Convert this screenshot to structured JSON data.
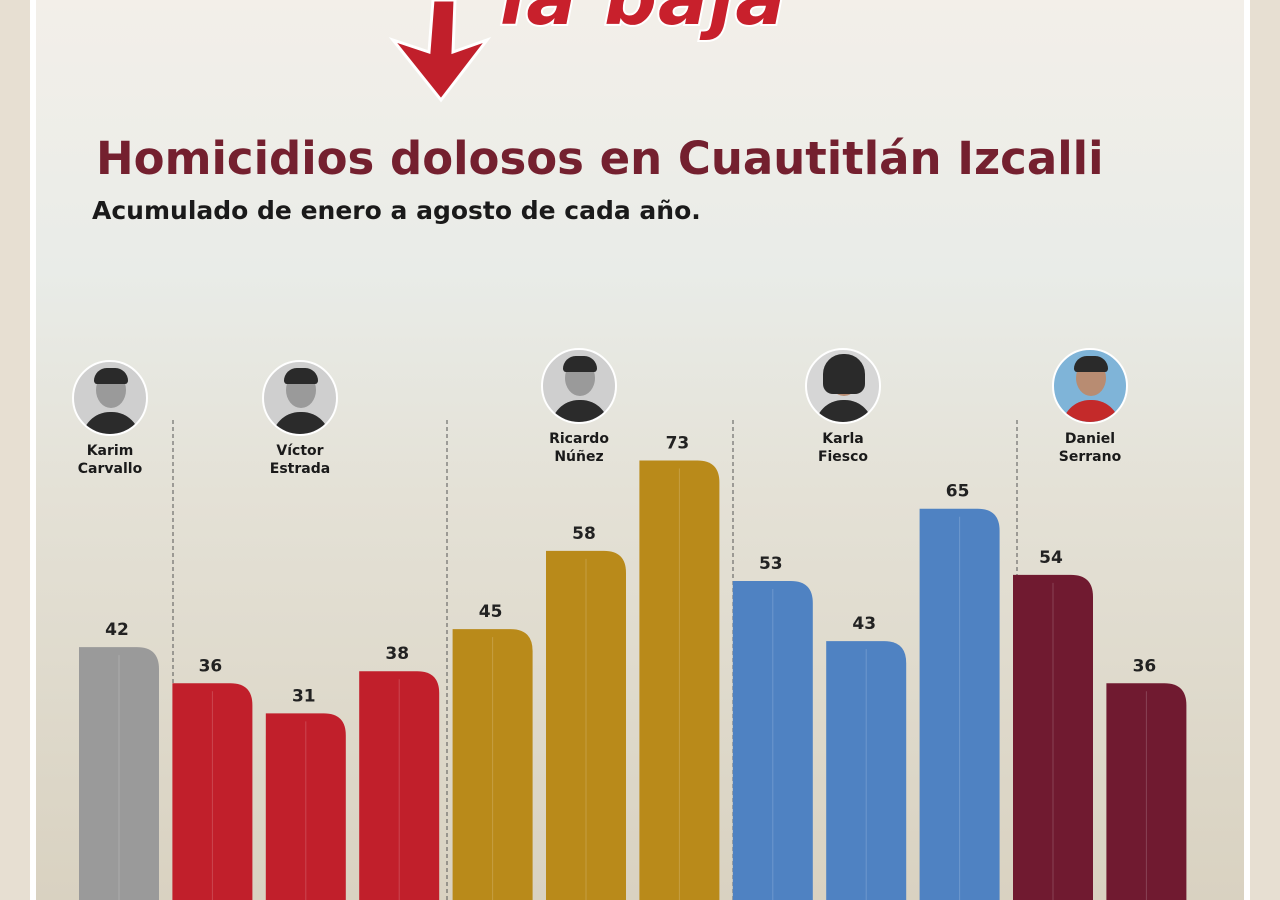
{
  "headline_partial": "la baja",
  "title": "Homicidios dolosos en Cuautitlán Izcalli",
  "subtitle": "Acumulado de enero a agosto de cada año.",
  "colors": {
    "gray": "#9a9a9a",
    "red": "#c11f2b",
    "gold": "#b98a1a",
    "blue": "#4f82c2",
    "maroon": "#701a30",
    "title": "#74202f"
  },
  "people": [
    {
      "first": "Karim",
      "last": "Carvallo",
      "icon": "karim-carvallo-avatar"
    },
    {
      "first": "Víctor",
      "last": "Estrada",
      "icon": "victor-estrada-avatar"
    },
    {
      "first": "Ricardo",
      "last": "Núñez",
      "icon": "ricardo-nunez-avatar"
    },
    {
      "first": "Karla",
      "last": "Fiesco",
      "icon": "karla-fiesco-avatar"
    },
    {
      "first": "Daniel",
      "last": "Serrano",
      "icon": "daniel-serrano-avatar"
    }
  ],
  "chart_data": {
    "type": "bar",
    "title": "Homicidios dolosos en Cuautitlán Izcalli",
    "subtitle": "Acumulado de enero a agosto de cada año.",
    "values": [
      42,
      36,
      31,
      38,
      45,
      58,
      73,
      53,
      43,
      65,
      54,
      36
    ],
    "bar_colors": [
      "gray",
      "red",
      "red",
      "red",
      "gold",
      "gold",
      "gold",
      "blue",
      "blue",
      "blue",
      "maroon",
      "maroon"
    ],
    "groups": [
      {
        "name": "Karim Carvallo",
        "bars": [
          0
        ],
        "color": "gray"
      },
      {
        "name": "Víctor Estrada",
        "bars": [
          1,
          2,
          3
        ],
        "color": "red"
      },
      {
        "name": "Ricardo Núñez",
        "bars": [
          4,
          5,
          6
        ],
        "color": "gold"
      },
      {
        "name": "Karla Fiesco",
        "bars": [
          7,
          8,
          9
        ],
        "color": "blue"
      },
      {
        "name": "Daniel Serrano",
        "bars": [
          10,
          11
        ],
        "color": "maroon"
      }
    ],
    "ylim": [
      0,
      100
    ],
    "grid": false,
    "data_labels": true
  }
}
